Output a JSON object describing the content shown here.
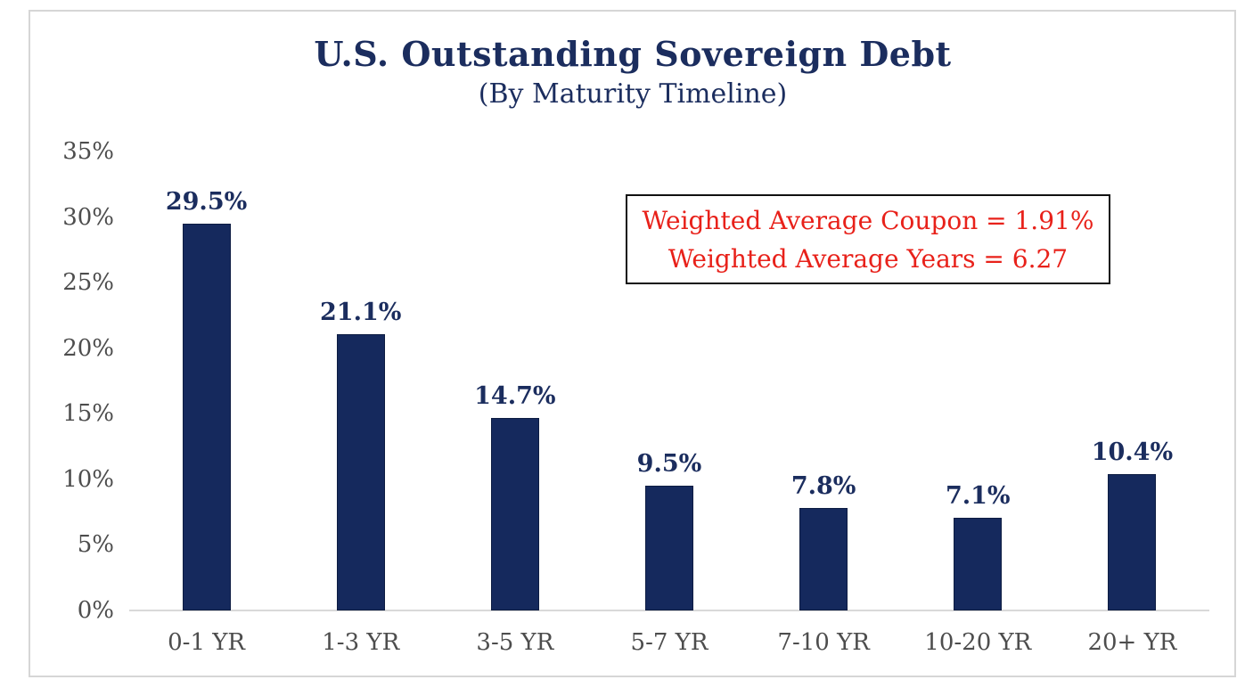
{
  "chart_data": {
    "type": "bar",
    "title": "U.S. Outstanding Sovereign Debt",
    "subtitle": "(By Maturity Timeline)",
    "categories": [
      "0-1 YR",
      "1-3 YR",
      "3-5 YR",
      "5-7 YR",
      "7-10 YR",
      "10-20 YR",
      "20+ YR"
    ],
    "values": [
      29.5,
      21.1,
      14.7,
      9.5,
      7.8,
      7.1,
      10.4
    ],
    "value_labels": [
      "29.5%",
      "21.1%",
      "14.7%",
      "9.5%",
      "7.8%",
      "7.1%",
      "10.4%"
    ],
    "xlabel": "",
    "ylabel": "",
    "ylim": [
      0,
      35
    ],
    "yticks": [
      {
        "label": "35%",
        "value": 35
      },
      {
        "label": "30%",
        "value": 30
      },
      {
        "label": "25%",
        "value": 25
      },
      {
        "label": "20%",
        "value": 20
      },
      {
        "label": "15%",
        "value": 15
      },
      {
        "label": "10%",
        "value": 10
      },
      {
        "label": "5%",
        "value": 5
      },
      {
        "label": "0%",
        "value": 0
      }
    ],
    "grid": false,
    "legend": "none",
    "annotation": {
      "lines": [
        "Weighted Average Coupon = 1.91%",
        "Weighted Average Years = 6.27"
      ]
    },
    "colors": {
      "background": "#ffffff",
      "bar": "#15295d",
      "title": "#1b2d5e",
      "bar_label": "#1b2d5e",
      "axis_text": "#4d4d4d",
      "axis_line": "#d9d9d9",
      "frame_border": "#d6d6d6",
      "annotation_text": "#e8211a",
      "annotation_border": "#111111"
    }
  }
}
